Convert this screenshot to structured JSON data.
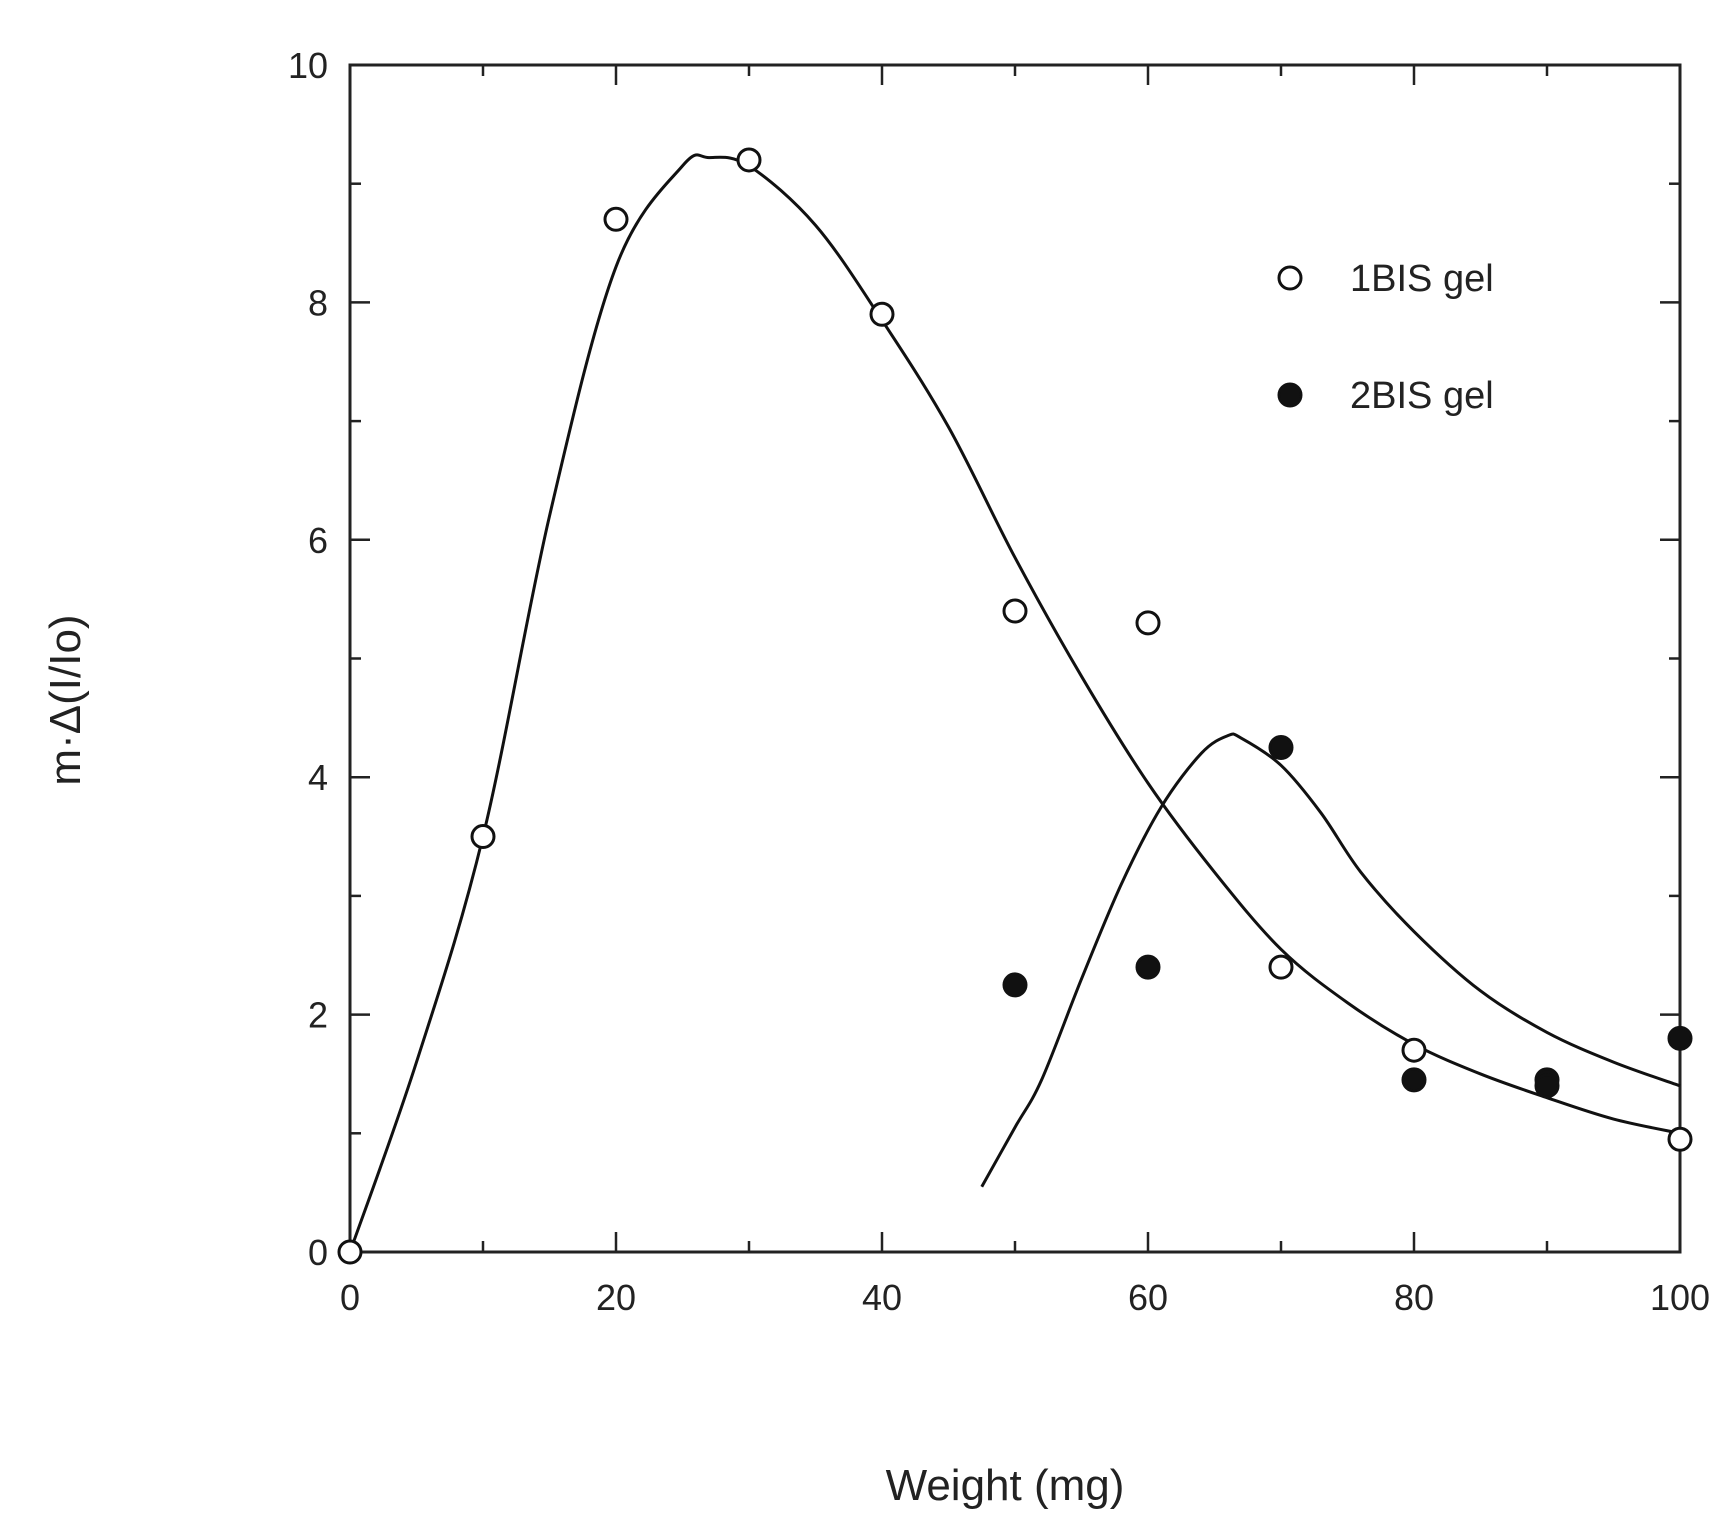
{
  "chart_data": {
    "type": "scatter",
    "title": "",
    "xlabel": "Weight (mg)",
    "ylabel": "m·Δ(I/Io)",
    "xlim": [
      0,
      100
    ],
    "ylim": [
      0,
      10
    ],
    "x_ticks": [
      "0",
      "20",
      "40",
      "60",
      "80",
      "100"
    ],
    "y_ticks": [
      "0",
      "2",
      "4",
      "6",
      "8",
      "10"
    ],
    "grid": false,
    "legend_position": "top-right",
    "series": [
      {
        "name": "1BIS gel",
        "marker": "open-circle",
        "points": [
          [
            0,
            0
          ],
          [
            10,
            3.5
          ],
          [
            20,
            8.7
          ],
          [
            30,
            9.2
          ],
          [
            40,
            7.9
          ],
          [
            50,
            5.4
          ],
          [
            60,
            5.3
          ],
          [
            70,
            2.4
          ],
          [
            80,
            1.7
          ],
          [
            100,
            0.95
          ]
        ],
        "fit_curve": [
          [
            0,
            0
          ],
          [
            5,
            1.6
          ],
          [
            10,
            3.5
          ],
          [
            15,
            6.2
          ],
          [
            20,
            8.3
          ],
          [
            25,
            9.15
          ],
          [
            27,
            9.22
          ],
          [
            30,
            9.15
          ],
          [
            35,
            8.65
          ],
          [
            40,
            7.85
          ],
          [
            45,
            6.95
          ],
          [
            50,
            5.85
          ],
          [
            55,
            4.85
          ],
          [
            60,
            3.95
          ],
          [
            65,
            3.2
          ],
          [
            70,
            2.55
          ],
          [
            75,
            2.1
          ],
          [
            80,
            1.75
          ],
          [
            85,
            1.5
          ],
          [
            90,
            1.3
          ],
          [
            95,
            1.12
          ],
          [
            100,
            1.0
          ]
        ]
      },
      {
        "name": "2BIS gel",
        "marker": "filled-circle",
        "points": [
          [
            50,
            2.25
          ],
          [
            60,
            2.4
          ],
          [
            70,
            4.25
          ],
          [
            80,
            1.45
          ],
          [
            90,
            1.45
          ],
          [
            90,
            1.4
          ],
          [
            100,
            1.8
          ]
        ],
        "fit_curve": [
          [
            47.5,
            0.55
          ],
          [
            50,
            1.05
          ],
          [
            52,
            1.45
          ],
          [
            55,
            2.3
          ],
          [
            58,
            3.1
          ],
          [
            61,
            3.75
          ],
          [
            64,
            4.2
          ],
          [
            66,
            4.35
          ],
          [
            67,
            4.33
          ],
          [
            70,
            4.1
          ],
          [
            73,
            3.7
          ],
          [
            76,
            3.2
          ],
          [
            80,
            2.7
          ],
          [
            85,
            2.2
          ],
          [
            90,
            1.85
          ],
          [
            95,
            1.6
          ],
          [
            100,
            1.4
          ]
        ]
      }
    ]
  }
}
